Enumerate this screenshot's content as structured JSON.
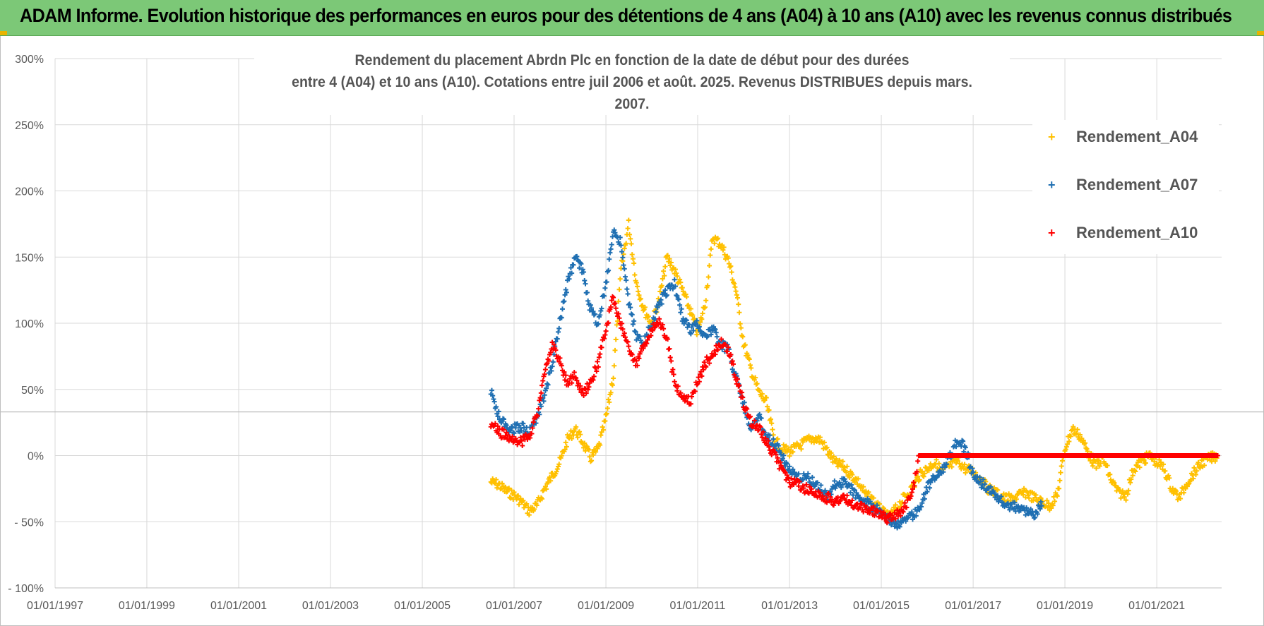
{
  "header": {
    "title": "ADAM Informe. Evolution historique des performances en euros pour des détentions de 4 ans (A04) à 10 ans (A10) avec les revenus connus distribués"
  },
  "chart_data": {
    "type": "scatter",
    "title_line1": "Rendement du placement Abrdn Plc en fonction de la date de début pour des durées",
    "title_line2": "entre 4 (A04) et 10 ans (A10). Cotations entre juil 2006 et août. 2025. Revenus DISTRIBUES depuis mars. 2007.",
    "xlabel": "",
    "ylabel": "",
    "x_type": "date",
    "xlim": [
      "1997-01-01",
      "2022-06-01"
    ],
    "ylim": [
      -100,
      300
    ],
    "y_unit": "%",
    "x_ticks": [
      "1997-01-01",
      "1999-01-01",
      "2001-01-01",
      "2003-01-01",
      "2005-01-01",
      "2007-01-01",
      "2009-01-01",
      "2011-01-01",
      "2013-01-01",
      "2015-01-01",
      "2017-01-01",
      "2019-01-01",
      "2021-01-01"
    ],
    "x_tick_labels": [
      "01/01/1997",
      "01/01/1999",
      "01/01/2001",
      "01/01/2003",
      "01/01/2005",
      "01/01/2007",
      "01/01/2009",
      "01/01/2011",
      "01/01/2013",
      "01/01/2015",
      "01/01/2017",
      "01/01/2019",
      "01/01/2021"
    ],
    "y_ticks": [
      -100,
      -50,
      0,
      50,
      100,
      150,
      200,
      250,
      300
    ],
    "y_tick_labels": [
      "- 100%",
      "- 50%",
      "0%",
      "50%",
      "100%",
      "150%",
      "200%",
      "250%",
      "300%"
    ],
    "grid": true,
    "legend_position": "right",
    "reference_line_y": 33,
    "marker": "+",
    "series": [
      {
        "name": "Rendement_A04",
        "color": "#ffc000",
        "x": [
          "2006-07-01",
          "2006-09-01",
          "2006-11-01",
          "2007-01-01",
          "2007-03-01",
          "2007-05-01",
          "2007-07-01",
          "2007-09-01",
          "2007-11-01",
          "2008-01-01",
          "2008-03-01",
          "2008-05-01",
          "2008-07-01",
          "2008-09-01",
          "2008-11-01",
          "2009-01-01",
          "2009-03-01",
          "2009-05-01",
          "2009-07-01",
          "2009-09-01",
          "2009-11-01",
          "2010-01-01",
          "2010-03-01",
          "2010-05-01",
          "2010-07-01",
          "2010-09-01",
          "2010-11-01",
          "2011-01-01",
          "2011-03-01",
          "2011-05-01",
          "2011-07-01",
          "2011-09-01",
          "2011-11-01",
          "2012-01-01",
          "2012-03-01",
          "2012-05-01",
          "2012-07-01",
          "2012-09-01",
          "2012-11-01",
          "2013-01-01",
          "2013-03-01",
          "2013-05-01",
          "2013-07-01",
          "2013-09-01",
          "2013-11-01",
          "2014-01-01",
          "2014-03-01",
          "2014-05-01",
          "2014-07-01",
          "2014-09-01",
          "2014-11-01",
          "2015-01-01",
          "2015-03-01",
          "2015-05-01",
          "2015-07-01",
          "2015-09-01",
          "2015-11-01",
          "2016-01-01",
          "2016-03-01",
          "2016-05-01",
          "2016-07-01",
          "2016-09-01",
          "2016-11-01",
          "2017-01-01",
          "2017-03-01",
          "2017-05-01",
          "2017-07-01",
          "2017-09-01",
          "2017-11-01",
          "2018-01-01",
          "2018-03-01",
          "2018-05-01",
          "2018-07-01",
          "2018-09-01",
          "2018-11-01",
          "2019-01-01",
          "2019-03-01",
          "2019-05-01",
          "2019-07-01",
          "2019-09-01",
          "2019-11-01",
          "2020-01-01",
          "2020-03-01",
          "2020-05-01",
          "2020-07-01",
          "2020-09-01",
          "2020-11-01",
          "2021-01-01",
          "2021-03-01",
          "2021-05-01",
          "2021-07-01",
          "2021-09-01",
          "2021-11-01",
          "2022-01-01",
          "2022-03-01",
          "2022-05-01"
        ],
        "y": [
          -20,
          -22,
          -27,
          -30,
          -35,
          -42,
          -38,
          -25,
          -15,
          -5,
          12,
          20,
          10,
          -2,
          5,
          28,
          60,
          140,
          175,
          130,
          110,
          100,
          118,
          150,
          140,
          125,
          110,
          92,
          115,
          165,
          160,
          148,
          125,
          85,
          65,
          48,
          40,
          12,
          5,
          3,
          6,
          10,
          13,
          12,
          3,
          -6,
          -8,
          -14,
          -20,
          -30,
          -34,
          -42,
          -47,
          -40,
          -32,
          -25,
          -15,
          -10,
          -5,
          -12,
          -8,
          -4,
          -10,
          -12,
          -18,
          -25,
          -28,
          -32,
          -33,
          -30,
          -28,
          -32,
          -35,
          -38,
          -30,
          5,
          20,
          15,
          3,
          -8,
          -2,
          -18,
          -28,
          -30,
          -10,
          -5,
          0,
          -5,
          -10,
          -25,
          -32,
          -20,
          -12,
          -5,
          -2,
          0
        ]
      },
      {
        "name": "Rendement_A07",
        "color": "#1f6fb2",
        "x": [
          "2006-07-01",
          "2006-09-01",
          "2006-11-01",
          "2007-01-01",
          "2007-03-01",
          "2007-05-01",
          "2007-07-01",
          "2007-09-01",
          "2007-11-01",
          "2008-01-01",
          "2008-03-01",
          "2008-05-01",
          "2008-07-01",
          "2008-09-01",
          "2008-11-01",
          "2009-01-01",
          "2009-03-01",
          "2009-05-01",
          "2009-07-01",
          "2009-09-01",
          "2009-11-01",
          "2010-01-01",
          "2010-03-01",
          "2010-05-01",
          "2010-07-01",
          "2010-09-01",
          "2010-11-01",
          "2011-01-01",
          "2011-03-01",
          "2011-05-01",
          "2011-07-01",
          "2011-09-01",
          "2011-11-01",
          "2012-01-01",
          "2012-03-01",
          "2012-05-01",
          "2012-07-01",
          "2012-09-01",
          "2012-11-01",
          "2013-01-01",
          "2013-03-01",
          "2013-05-01",
          "2013-07-01",
          "2013-09-01",
          "2013-11-01",
          "2014-01-01",
          "2014-03-01",
          "2014-05-01",
          "2014-07-01",
          "2014-09-01",
          "2014-11-01",
          "2015-01-01",
          "2015-03-01",
          "2015-05-01",
          "2015-07-01",
          "2015-09-01",
          "2015-11-01",
          "2016-01-01",
          "2016-03-01",
          "2016-05-01",
          "2016-07-01",
          "2016-09-01",
          "2016-11-01",
          "2017-01-01",
          "2017-03-01",
          "2017-05-01",
          "2017-07-01",
          "2017-09-01",
          "2017-11-01",
          "2018-01-01",
          "2018-03-01",
          "2018-05-01",
          "2018-07-01"
        ],
        "y": [
          48,
          30,
          22,
          20,
          22,
          18,
          28,
          45,
          70,
          100,
          130,
          150,
          140,
          110,
          100,
          130,
          170,
          160,
          115,
          90,
          85,
          100,
          115,
          125,
          130,
          105,
          95,
          100,
          90,
          95,
          85,
          80,
          60,
          40,
          20,
          30,
          15,
          10,
          0,
          -10,
          -18,
          -15,
          -20,
          -25,
          -30,
          -22,
          -20,
          -25,
          -30,
          -35,
          -40,
          -42,
          -48,
          -52,
          -50,
          -45,
          -40,
          -25,
          -15,
          -10,
          0,
          12,
          5,
          -15,
          -20,
          -25,
          -30,
          -35,
          -38,
          -40,
          -42,
          -45,
          -35
        ]
      },
      {
        "name": "Rendement_A10",
        "color": "#ff0000",
        "x": [
          "2006-07-01",
          "2006-09-01",
          "2006-11-01",
          "2007-01-01",
          "2007-03-01",
          "2007-05-01",
          "2007-07-01",
          "2007-09-01",
          "2007-11-01",
          "2008-01-01",
          "2008-03-01",
          "2008-05-01",
          "2008-07-01",
          "2008-09-01",
          "2008-11-01",
          "2009-01-01",
          "2009-03-01",
          "2009-05-01",
          "2009-07-01",
          "2009-09-01",
          "2009-11-01",
          "2010-01-01",
          "2010-03-01",
          "2010-05-01",
          "2010-07-01",
          "2010-09-01",
          "2010-11-01",
          "2011-01-01",
          "2011-03-01",
          "2011-05-01",
          "2011-07-01",
          "2011-09-01",
          "2011-11-01",
          "2012-01-01",
          "2012-03-01",
          "2012-05-01",
          "2012-07-01",
          "2012-09-01",
          "2012-11-01",
          "2013-01-01",
          "2013-03-01",
          "2013-05-01",
          "2013-07-01",
          "2013-09-01",
          "2013-11-01",
          "2014-01-01",
          "2014-03-01",
          "2014-05-01",
          "2014-07-01",
          "2014-09-01",
          "2014-11-01",
          "2015-01-01",
          "2015-03-01",
          "2015-05-01",
          "2015-07-01",
          "2015-09-01",
          "2015-11-01",
          "2016-01-01",
          "2016-03-01",
          "2016-05-01",
          "2016-07-01",
          "2016-09-01",
          "2016-11-01",
          "2017-01-01",
          "2017-03-01",
          "2017-05-01",
          "2017-07-01",
          "2017-09-01",
          "2017-11-01",
          "2018-01-01",
          "2018-03-01",
          "2018-05-01",
          "2018-07-01",
          "2018-09-01",
          "2018-11-01",
          "2019-01-01",
          "2019-03-01",
          "2019-05-01",
          "2019-07-01",
          "2019-09-01",
          "2019-11-01",
          "2020-01-01",
          "2020-03-01",
          "2020-05-01",
          "2020-07-01",
          "2020-09-01",
          "2020-11-01",
          "2021-01-01",
          "2021-03-01",
          "2021-05-01",
          "2021-07-01",
          "2021-09-01",
          "2021-11-01",
          "2022-01-01",
          "2022-03-01",
          "2022-05-01"
        ],
        "y": [
          25,
          18,
          15,
          12,
          10,
          15,
          30,
          60,
          85,
          70,
          55,
          60,
          45,
          55,
          70,
          95,
          120,
          100,
          80,
          70,
          85,
          95,
          100,
          90,
          55,
          45,
          40,
          55,
          70,
          75,
          85,
          80,
          60,
          40,
          25,
          20,
          10,
          0,
          -10,
          -20,
          -22,
          -25,
          -28,
          -30,
          -32,
          -35,
          -30,
          -35,
          -38,
          -40,
          -42,
          -45,
          -48,
          -45,
          -40,
          -30,
          0,
          0,
          0,
          0,
          0,
          0,
          0,
          0,
          0,
          0,
          0,
          0,
          0,
          0,
          0,
          0,
          0,
          0,
          0,
          0,
          0,
          0,
          0,
          0,
          0,
          0,
          0,
          0,
          0,
          0,
          0,
          0,
          0,
          0,
          0,
          0,
          0,
          0,
          0,
          0
        ]
      }
    ]
  }
}
